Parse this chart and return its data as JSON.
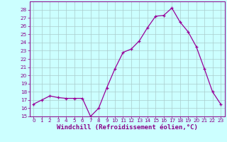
{
  "x": [
    0,
    1,
    2,
    3,
    4,
    5,
    6,
    7,
    8,
    9,
    10,
    11,
    12,
    13,
    14,
    15,
    16,
    17,
    18,
    19,
    20,
    21,
    22,
    23
  ],
  "y": [
    16.5,
    17.0,
    17.5,
    17.3,
    17.2,
    17.2,
    17.2,
    15.0,
    16.0,
    18.5,
    20.8,
    22.8,
    23.2,
    24.2,
    25.8,
    27.2,
    27.3,
    28.2,
    26.5,
    25.3,
    23.5,
    20.8,
    18.0,
    16.5
  ],
  "line_color": "#990099",
  "marker": "+",
  "marker_size": 3,
  "bg_color": "#ccffff",
  "grid_color": "#aacccc",
  "xlim": [
    -0.5,
    23.5
  ],
  "ylim": [
    15,
    29
  ],
  "yticks": [
    15,
    16,
    17,
    18,
    19,
    20,
    21,
    22,
    23,
    24,
    25,
    26,
    27,
    28
  ],
  "xticks": [
    0,
    1,
    2,
    3,
    4,
    5,
    6,
    7,
    8,
    9,
    10,
    11,
    12,
    13,
    14,
    15,
    16,
    17,
    18,
    19,
    20,
    21,
    22,
    23
  ],
  "tick_fontsize": 5.2,
  "xlabel": "Windchill (Refroidissement éolien,°C)",
  "xlabel_fontsize": 6.5,
  "axis_color": "#880088",
  "spine_color": "#880088",
  "linewidth": 0.9,
  "markeredgewidth": 0.9
}
